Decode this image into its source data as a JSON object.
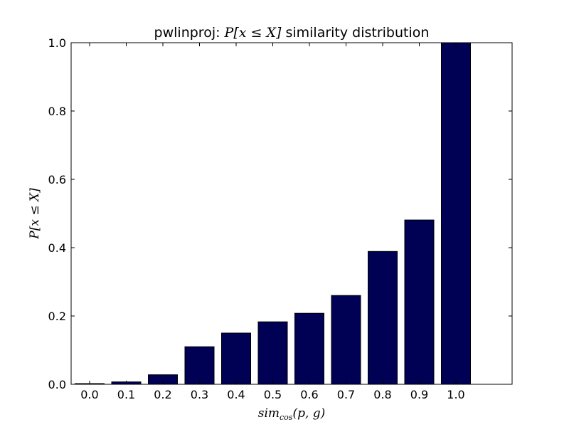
{
  "chart_data": {
    "type": "bar",
    "title_prefix": "pwlinproj: ",
    "title_math": "P[x ≤ X]",
    "title_suffix": " similarity distribution",
    "xlabel_main": "sim",
    "xlabel_sub": "cos",
    "xlabel_args": "(p, g)",
    "ylabel": "P[x ≤ X]",
    "categories": [
      "0.0",
      "0.1",
      "0.2",
      "0.3",
      "0.4",
      "0.5",
      "0.6",
      "0.7",
      "0.8",
      "0.9",
      "1.0"
    ],
    "values": [
      0.002,
      0.007,
      0.028,
      0.11,
      0.15,
      0.183,
      0.208,
      0.26,
      0.389,
      0.481,
      1.0
    ],
    "ylim": [
      0,
      1.0
    ],
    "yticks": [
      "0.0",
      "0.2",
      "0.4",
      "0.6",
      "0.8",
      "1.0"
    ],
    "grid": false,
    "bar_color": "#000055"
  }
}
